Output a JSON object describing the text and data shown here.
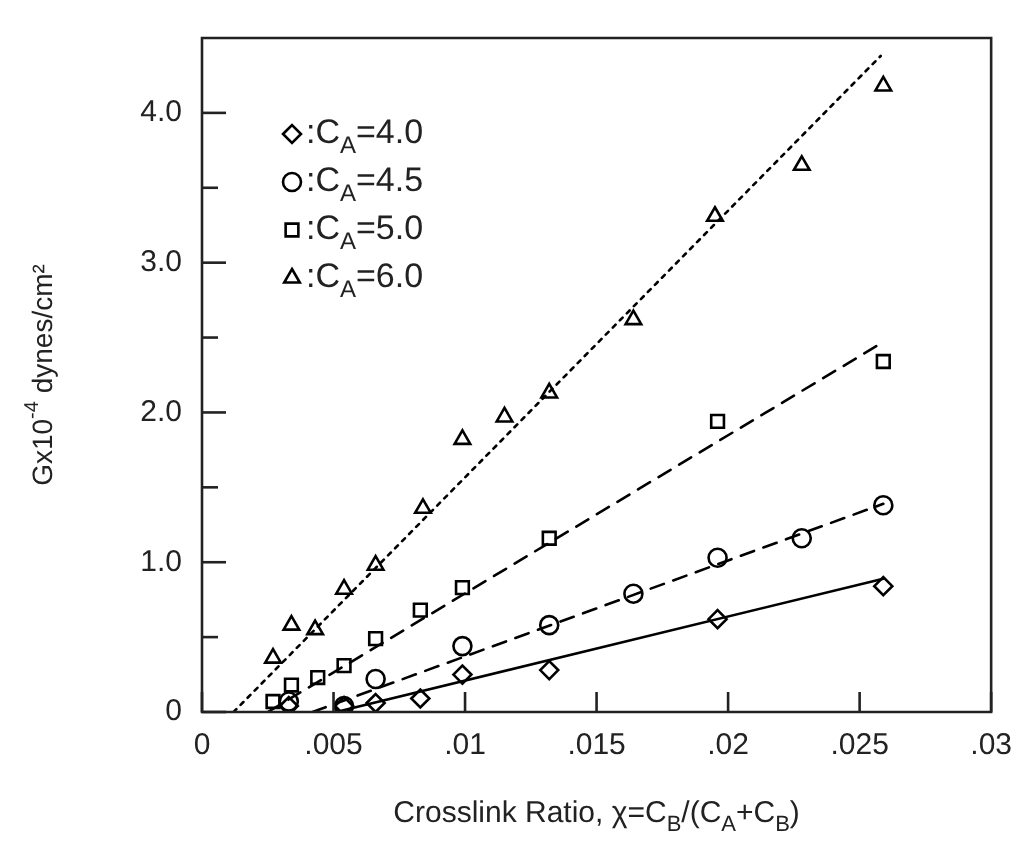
{
  "chart_data": {
    "type": "scatter",
    "xlabel": "Crosslink Ratio, χ=C$_{B}$/(C$_{A}$+C$_{B}$)",
    "ylabel": "Gx10$^{-4}$ dynes/cm²",
    "xlim": [
      0,
      0.03
    ],
    "ylim": [
      0,
      4.5
    ],
    "xticks": [
      0,
      {
        "value": 0.005,
        "label": ".005"
      },
      {
        "value": 0.01,
        "label": ".01"
      },
      {
        "value": 0.015,
        "label": ".015"
      },
      {
        "value": 0.02,
        "label": ".02"
      },
      {
        "value": 0.025,
        "label": ".025"
      },
      {
        "value": 0.03,
        "label": ".03"
      }
    ],
    "yticks": [
      0,
      {
        "value": 0.5,
        "label": null
      },
      {
        "value": 1,
        "label": "1.0"
      },
      {
        "value": 1.5,
        "label": null
      },
      {
        "value": 2,
        "label": "2.0"
      },
      {
        "value": 2.5,
        "label": null
      },
      {
        "value": 3,
        "label": "3.0"
      },
      {
        "value": 3.5,
        "label": null
      },
      {
        "value": 4,
        "label": "4.0"
      }
    ],
    "grid": false,
    "legend": "top left",
    "series": [
      {
        "name": ":C$_{A}$=4.0",
        "marker": "diamond",
        "color": "#000000",
        "x": [
          0.0033,
          0.0054,
          0.0066,
          0.0083,
          0.0099,
          0.0132,
          0.0196,
          0.0259
        ],
        "values": [
          0.04,
          0.04,
          0.06,
          0.09,
          0.25,
          0.28,
          0.62,
          0.84
        ]
      },
      {
        "name": ":C$_{A}$=4.5",
        "marker": "circle",
        "color": "#000000",
        "x": [
          0.0033,
          0.0054,
          0.0066,
          0.0099,
          0.0132,
          0.0164,
          0.0196,
          0.0228,
          0.0259
        ],
        "values": [
          0.07,
          0.04,
          0.22,
          0.44,
          0.58,
          0.79,
          1.03,
          1.16,
          1.38
        ]
      },
      {
        "name": ":C$_{A}$=5.0",
        "marker": "square",
        "color": "#000000",
        "x": [
          0.0027,
          0.0034,
          0.0044,
          0.0054,
          0.0066,
          0.0083,
          0.0099,
          0.0132,
          0.0196,
          0.0259
        ],
        "values": [
          0.07,
          0.18,
          0.23,
          0.31,
          0.49,
          0.68,
          0.83,
          1.16,
          1.94,
          2.34
        ]
      },
      {
        "name": ":C$_{A}$=6.0",
        "marker": "triangle",
        "color": "#000000",
        "x": [
          0.0027,
          0.0034,
          0.0043,
          0.0054,
          0.0066,
          0.0084,
          0.0099,
          0.0115,
          0.0132,
          0.0164,
          0.0195,
          0.0228,
          0.0259
        ],
        "values": [
          0.36,
          0.58,
          0.55,
          0.82,
          0.98,
          1.36,
          1.82,
          1.97,
          2.13,
          2.62,
          3.31,
          3.65,
          4.18
        ]
      },
      {
        "type": "line",
        "line_style": "solid",
        "marker": "none",
        "color": "#000000",
        "x": [
          0.0051,
          0.0259
        ],
        "values": [
          0,
          0.89
        ]
      },
      {
        "type": "line",
        "line_style": "dashed",
        "marker": "none",
        "color": "#000000",
        "x": [
          0.0042,
          0.0259
        ],
        "values": [
          0,
          1.39
        ]
      },
      {
        "type": "line",
        "line_style": "dashed",
        "marker": "none",
        "color": "#000000",
        "x": [
          0.0025,
          0.0258
        ],
        "values": [
          0,
          2.46
        ]
      },
      {
        "type": "line",
        "line_style": "dotted",
        "marker": "none",
        "color": "#000000",
        "x": [
          0.0012,
          0.0258
        ],
        "values": [
          0,
          4.38
        ]
      }
    ]
  }
}
